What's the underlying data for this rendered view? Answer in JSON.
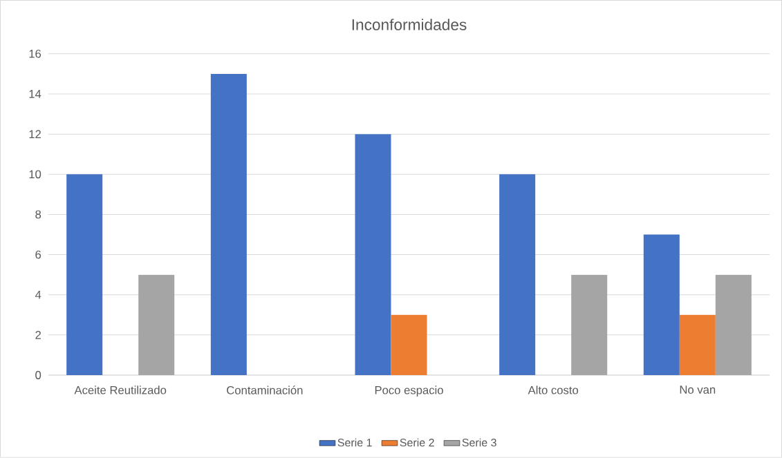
{
  "chart_data": {
    "type": "bar",
    "title": "Inconformidades",
    "categories": [
      "Aceite Reutilizado",
      "Contaminación",
      "Poco espacio",
      "Alto costo",
      "No van"
    ],
    "series": [
      {
        "name": "Serie 1",
        "color": "#4472c4",
        "values": [
          10,
          15,
          12,
          10,
          7
        ]
      },
      {
        "name": "Serie 2",
        "color": "#ed7d31",
        "values": [
          null,
          null,
          3,
          null,
          3
        ]
      },
      {
        "name": "Serie 3",
        "color": "#a5a5a5",
        "values": [
          5,
          null,
          null,
          5,
          5
        ]
      }
    ],
    "ylim": [
      0,
      16
    ],
    "yticks": [
      0,
      2,
      4,
      6,
      8,
      10,
      12,
      14,
      16
    ],
    "grid": "y",
    "legend": "bottom"
  }
}
